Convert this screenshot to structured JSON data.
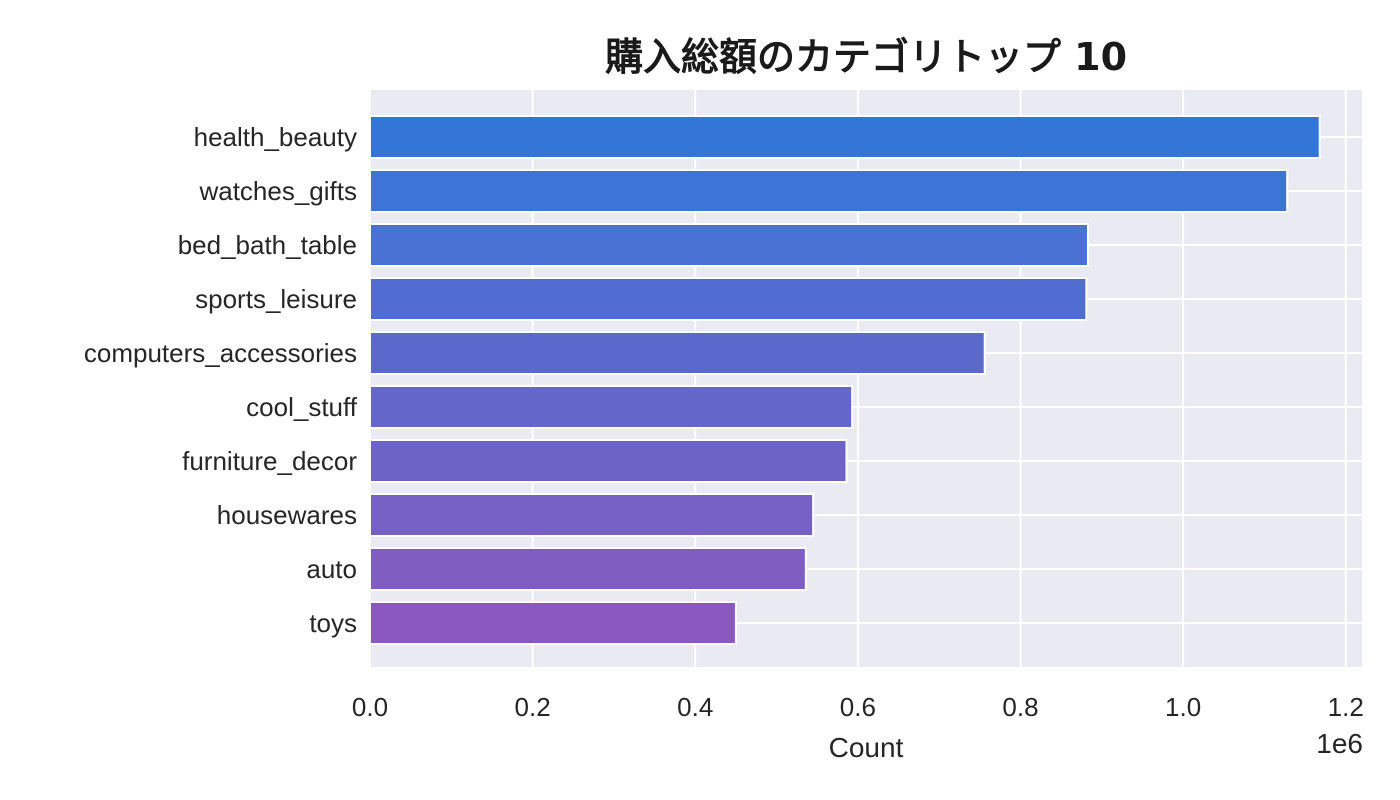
{
  "chart_data": {
    "type": "bar",
    "orientation": "horizontal",
    "title": "購入総額のカテゴリトップ 10",
    "xlabel": "Count",
    "ylabel": "",
    "x_scale_label": "1e6",
    "xlim": [
      0,
      1.22
    ],
    "xticks": [
      0.0,
      0.2,
      0.4,
      0.6,
      0.8,
      1.0,
      1.2
    ],
    "xtick_labels": [
      "0.0",
      "0.2",
      "0.4",
      "0.6",
      "0.8",
      "1.0",
      "1.2"
    ],
    "grid": true,
    "categories": [
      "health_beauty",
      "watches_gifts",
      "bed_bath_table",
      "sports_leisure",
      "computers_accessories",
      "cool_stuff",
      "furniture_decor",
      "housewares",
      "auto",
      "toys"
    ],
    "values": [
      1.168,
      1.128,
      0.883,
      0.881,
      0.756,
      0.593,
      0.586,
      0.545,
      0.536,
      0.45
    ],
    "colors": [
      "#3476d8",
      "#3d75d6",
      "#4a71d4",
      "#526dd1",
      "#5b69cc",
      "#6566c9",
      "#6d63c6",
      "#7760c3",
      "#805dc0",
      "#8b58bf"
    ],
    "background": "#eaeaf2"
  }
}
